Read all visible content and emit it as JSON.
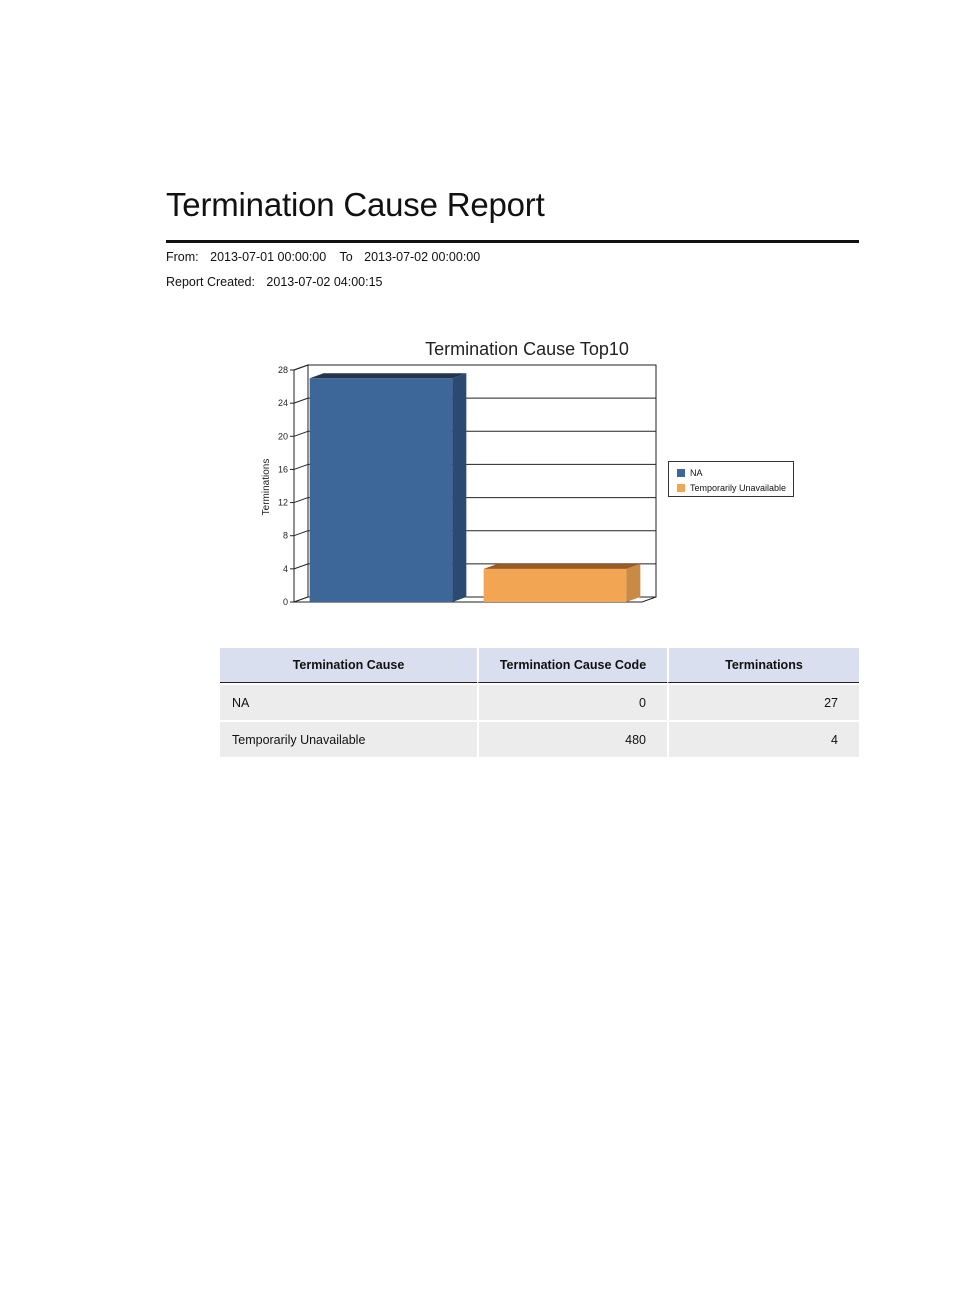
{
  "report": {
    "title": "Termination Cause Report",
    "from_label": "From:",
    "from_value": "2013-07-01 00:00:00",
    "to_label": "To",
    "to_value": "2013-07-02 00:00:00",
    "created_label": "Report Created:",
    "created_value": "2013-07-02 04:00:15"
  },
  "chart_data": {
    "type": "bar",
    "title": "Termination Cause Top10",
    "ylabel": "Terminations",
    "xlabel": "",
    "ylim": [
      0,
      28
    ],
    "yticks": [
      0,
      4,
      8,
      12,
      16,
      20,
      24,
      28
    ],
    "grid": true,
    "legend_position": "right",
    "categories": [
      "NA",
      "Temporarily Unavailable"
    ],
    "values": [
      27,
      4
    ],
    "colors": [
      "#3d6699",
      "#f2a553"
    ],
    "shade_colors": [
      "#2a4a72",
      "#c98a45"
    ],
    "top_colors": [
      "#24344f",
      "#9a5a22"
    ]
  },
  "table": {
    "headers": [
      "Termination Cause",
      "Termination Cause Code",
      "Terminations"
    ],
    "rows": [
      {
        "cause": "NA",
        "code": "0",
        "terminations": "27"
      },
      {
        "cause": "Temporarily Unavailable",
        "code": "480",
        "terminations": "4"
      }
    ]
  }
}
